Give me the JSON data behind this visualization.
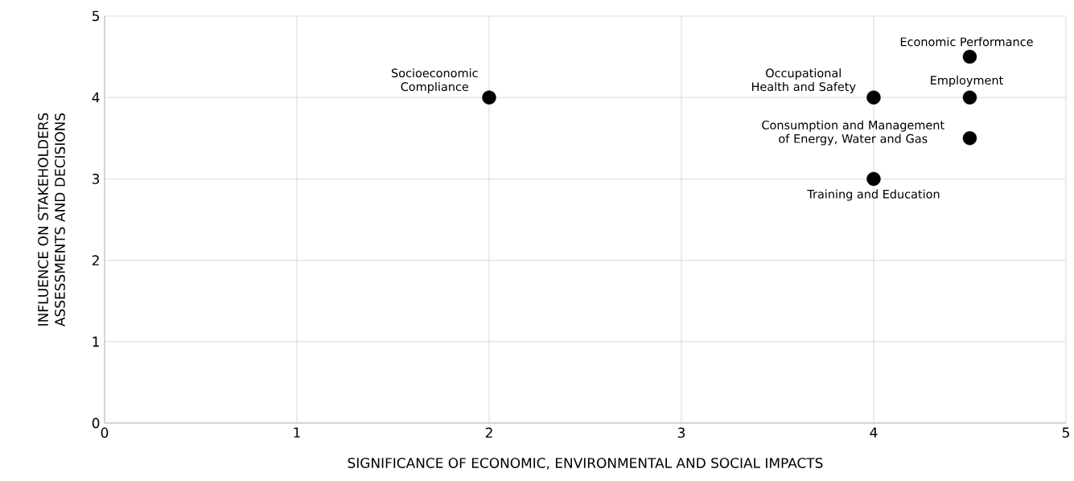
{
  "chart_data": {
    "type": "scatter",
    "xlabel": "SIGNIFICANCE OF ECONOMIC, ENVIRONMENTAL AND SOCIAL IMPACTS",
    "ylabel": "INFLUENCE ON STAKEHOLDERS ASSESSMENTS AND DECISIONS",
    "x": [
      2,
      4,
      4.5,
      4.5,
      4.5,
      4
    ],
    "values": [
      4,
      4,
      4.5,
      4,
      3.5,
      3
    ],
    "color": "#000000",
    "marker": "circle",
    "xlim": [
      0,
      5
    ],
    "ylim": [
      0,
      5
    ],
    "xticks": [
      0,
      1,
      2,
      3,
      4,
      5
    ],
    "yticks": [
      0,
      1,
      2,
      3,
      4,
      5
    ],
    "grid": true,
    "annotations": [
      {
        "text": "Socioeconomic Compliance",
        "x": 2,
        "y": 4
      },
      {
        "text": "Occupational Health and Safety",
        "x": 4,
        "y": 4
      },
      {
        "text": "Economic Performance",
        "x": 4.5,
        "y": 4.5
      },
      {
        "text": "Employment",
        "x": 4.5,
        "y": 4
      },
      {
        "text": "Consumption and Management of Energy, Water and Gas",
        "x": 4.5,
        "y": 3.5
      },
      {
        "text": "Training and Education",
        "x": 4,
        "y": 3
      }
    ]
  }
}
